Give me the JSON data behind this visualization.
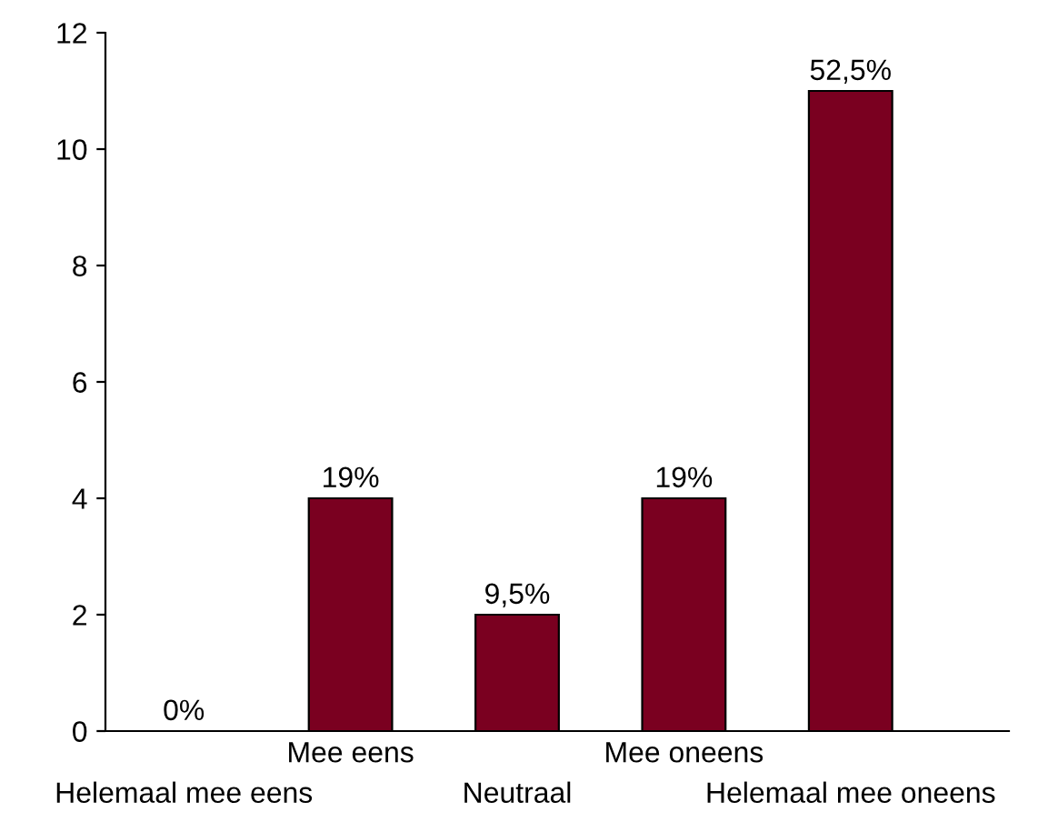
{
  "chart_data": {
    "type": "bar",
    "categories": [
      "Helemaal mee eens",
      "Mee eens",
      "Neutraal",
      "Mee oneens",
      "Helemaal mee oneens"
    ],
    "values": [
      0,
      4,
      2,
      4,
      11
    ],
    "annotations": [
      {
        "text": "0%",
        "x": "Helemaal mee eens",
        "y": 0
      },
      {
        "text": "19%",
        "x": "Mee eens",
        "y": 4
      },
      {
        "text": "9,5%",
        "x": "Neutraal",
        "y": 2
      },
      {
        "text": "19%",
        "x": "Mee oneens",
        "y": 4
      },
      {
        "text": "52,5%",
        "x": "Helemaal mee oneens",
        "y": 11
      }
    ],
    "color": "#7a0020",
    "ylim": [
      0,
      12
    ],
    "yticks": [
      0,
      2,
      4,
      6,
      8,
      10,
      12
    ],
    "grid": false,
    "legend": false
  }
}
